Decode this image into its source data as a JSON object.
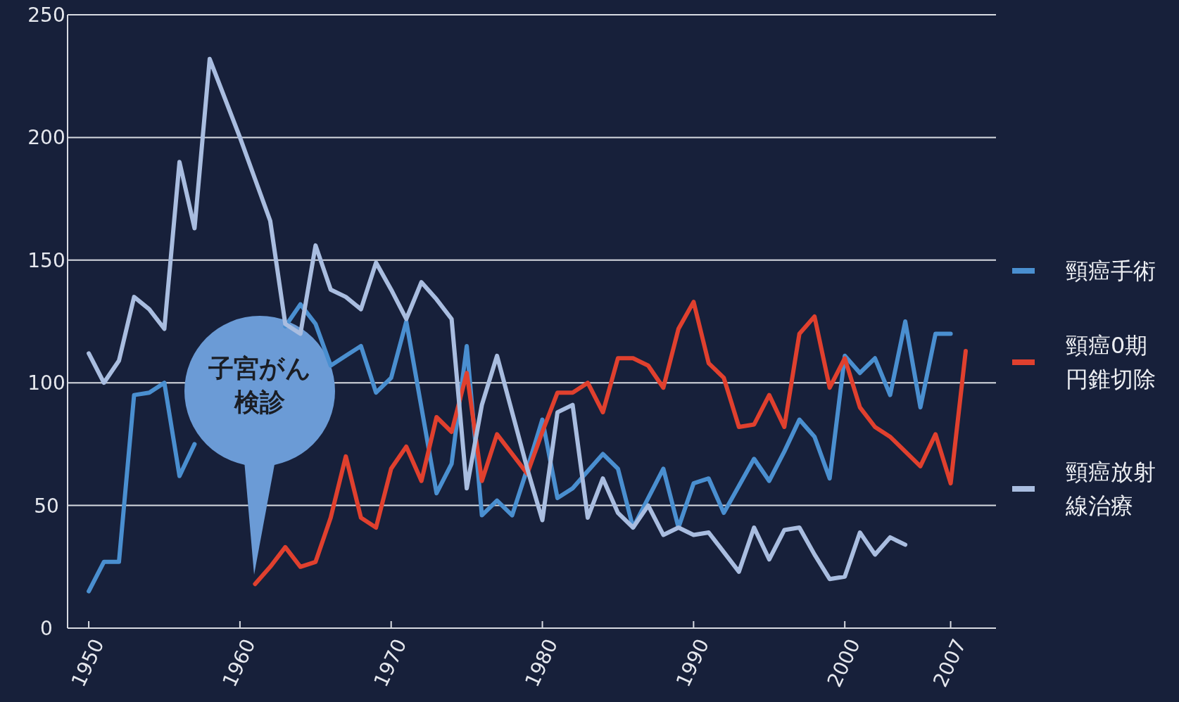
{
  "chart_data": {
    "type": "line",
    "x": [
      1950,
      1951,
      1952,
      1953,
      1954,
      1955,
      1956,
      1957,
      1958,
      1959,
      1960,
      1961,
      1962,
      1963,
      1964,
      1965,
      1966,
      1967,
      1968,
      1969,
      1970,
      1971,
      1972,
      1973,
      1974,
      1975,
      1976,
      1977,
      1978,
      1979,
      1980,
      1981,
      1982,
      1983,
      1984,
      1985,
      1986,
      1987,
      1988,
      1989,
      1990,
      1991,
      1992,
      1993,
      1994,
      1995,
      1996,
      1997,
      1998,
      1999,
      2000,
      2001,
      2002,
      2003,
      2004,
      2005,
      2006,
      2007,
      2008
    ],
    "series": [
      {
        "name": "頸癌手術",
        "color": "#4a8fd0",
        "values": [
          15,
          27,
          27,
          95,
          96,
          100,
          62,
          75,
          null,
          null,
          null,
          null,
          null,
          123,
          132,
          124,
          107,
          111,
          115,
          96,
          102,
          125,
          90,
          55,
          67,
          115,
          46,
          52,
          46,
          65,
          85,
          53,
          57,
          64,
          71,
          65,
          41,
          53,
          65,
          41,
          59,
          61,
          47,
          58,
          69,
          60,
          72,
          85,
          78,
          61,
          111,
          104,
          110,
          95,
          125,
          90,
          120,
          120,
          null
        ]
      },
      {
        "name": "頸癌0期円錐切除",
        "color": "#e0402e",
        "values": [
          null,
          null,
          null,
          null,
          null,
          null,
          null,
          null,
          null,
          null,
          null,
          18,
          25,
          33,
          25,
          27,
          45,
          70,
          45,
          41,
          65,
          74,
          60,
          86,
          80,
          104,
          60,
          79,
          71,
          63,
          80,
          96,
          96,
          100,
          88,
          110,
          110,
          107,
          98,
          122,
          133,
          108,
          102,
          82,
          83,
          95,
          82,
          120,
          127,
          98,
          110,
          90,
          82,
          78,
          72,
          66,
          79,
          59,
          113
        ]
      },
      {
        "name": "頸癌放射線治療",
        "color": "#a9bde0",
        "values": [
          112,
          100,
          109,
          135,
          130,
          122,
          190,
          163,
          232,
          216,
          200,
          183,
          166,
          124,
          120,
          156,
          138,
          135,
          130,
          149,
          138,
          126,
          141,
          134,
          126,
          57,
          91,
          111,
          88,
          65,
          44,
          88,
          91,
          45,
          61,
          47,
          41,
          50,
          38,
          41,
          38,
          39,
          31,
          23,
          41,
          28,
          40,
          41,
          30,
          20,
          21,
          39,
          30,
          37,
          34,
          null,
          null,
          null,
          null
        ]
      }
    ],
    "xlim": [
      1948.6,
      2010
    ],
    "ylim": [
      0,
      250
    ],
    "xticks": [
      1950,
      1960,
      1970,
      1980,
      1990,
      2000,
      2007
    ],
    "yticks": [
      0,
      50,
      100,
      150,
      200,
      250
    ],
    "grid": "y",
    "legend": "right",
    "annotations": [
      "子宮がん検診"
    ]
  }
}
